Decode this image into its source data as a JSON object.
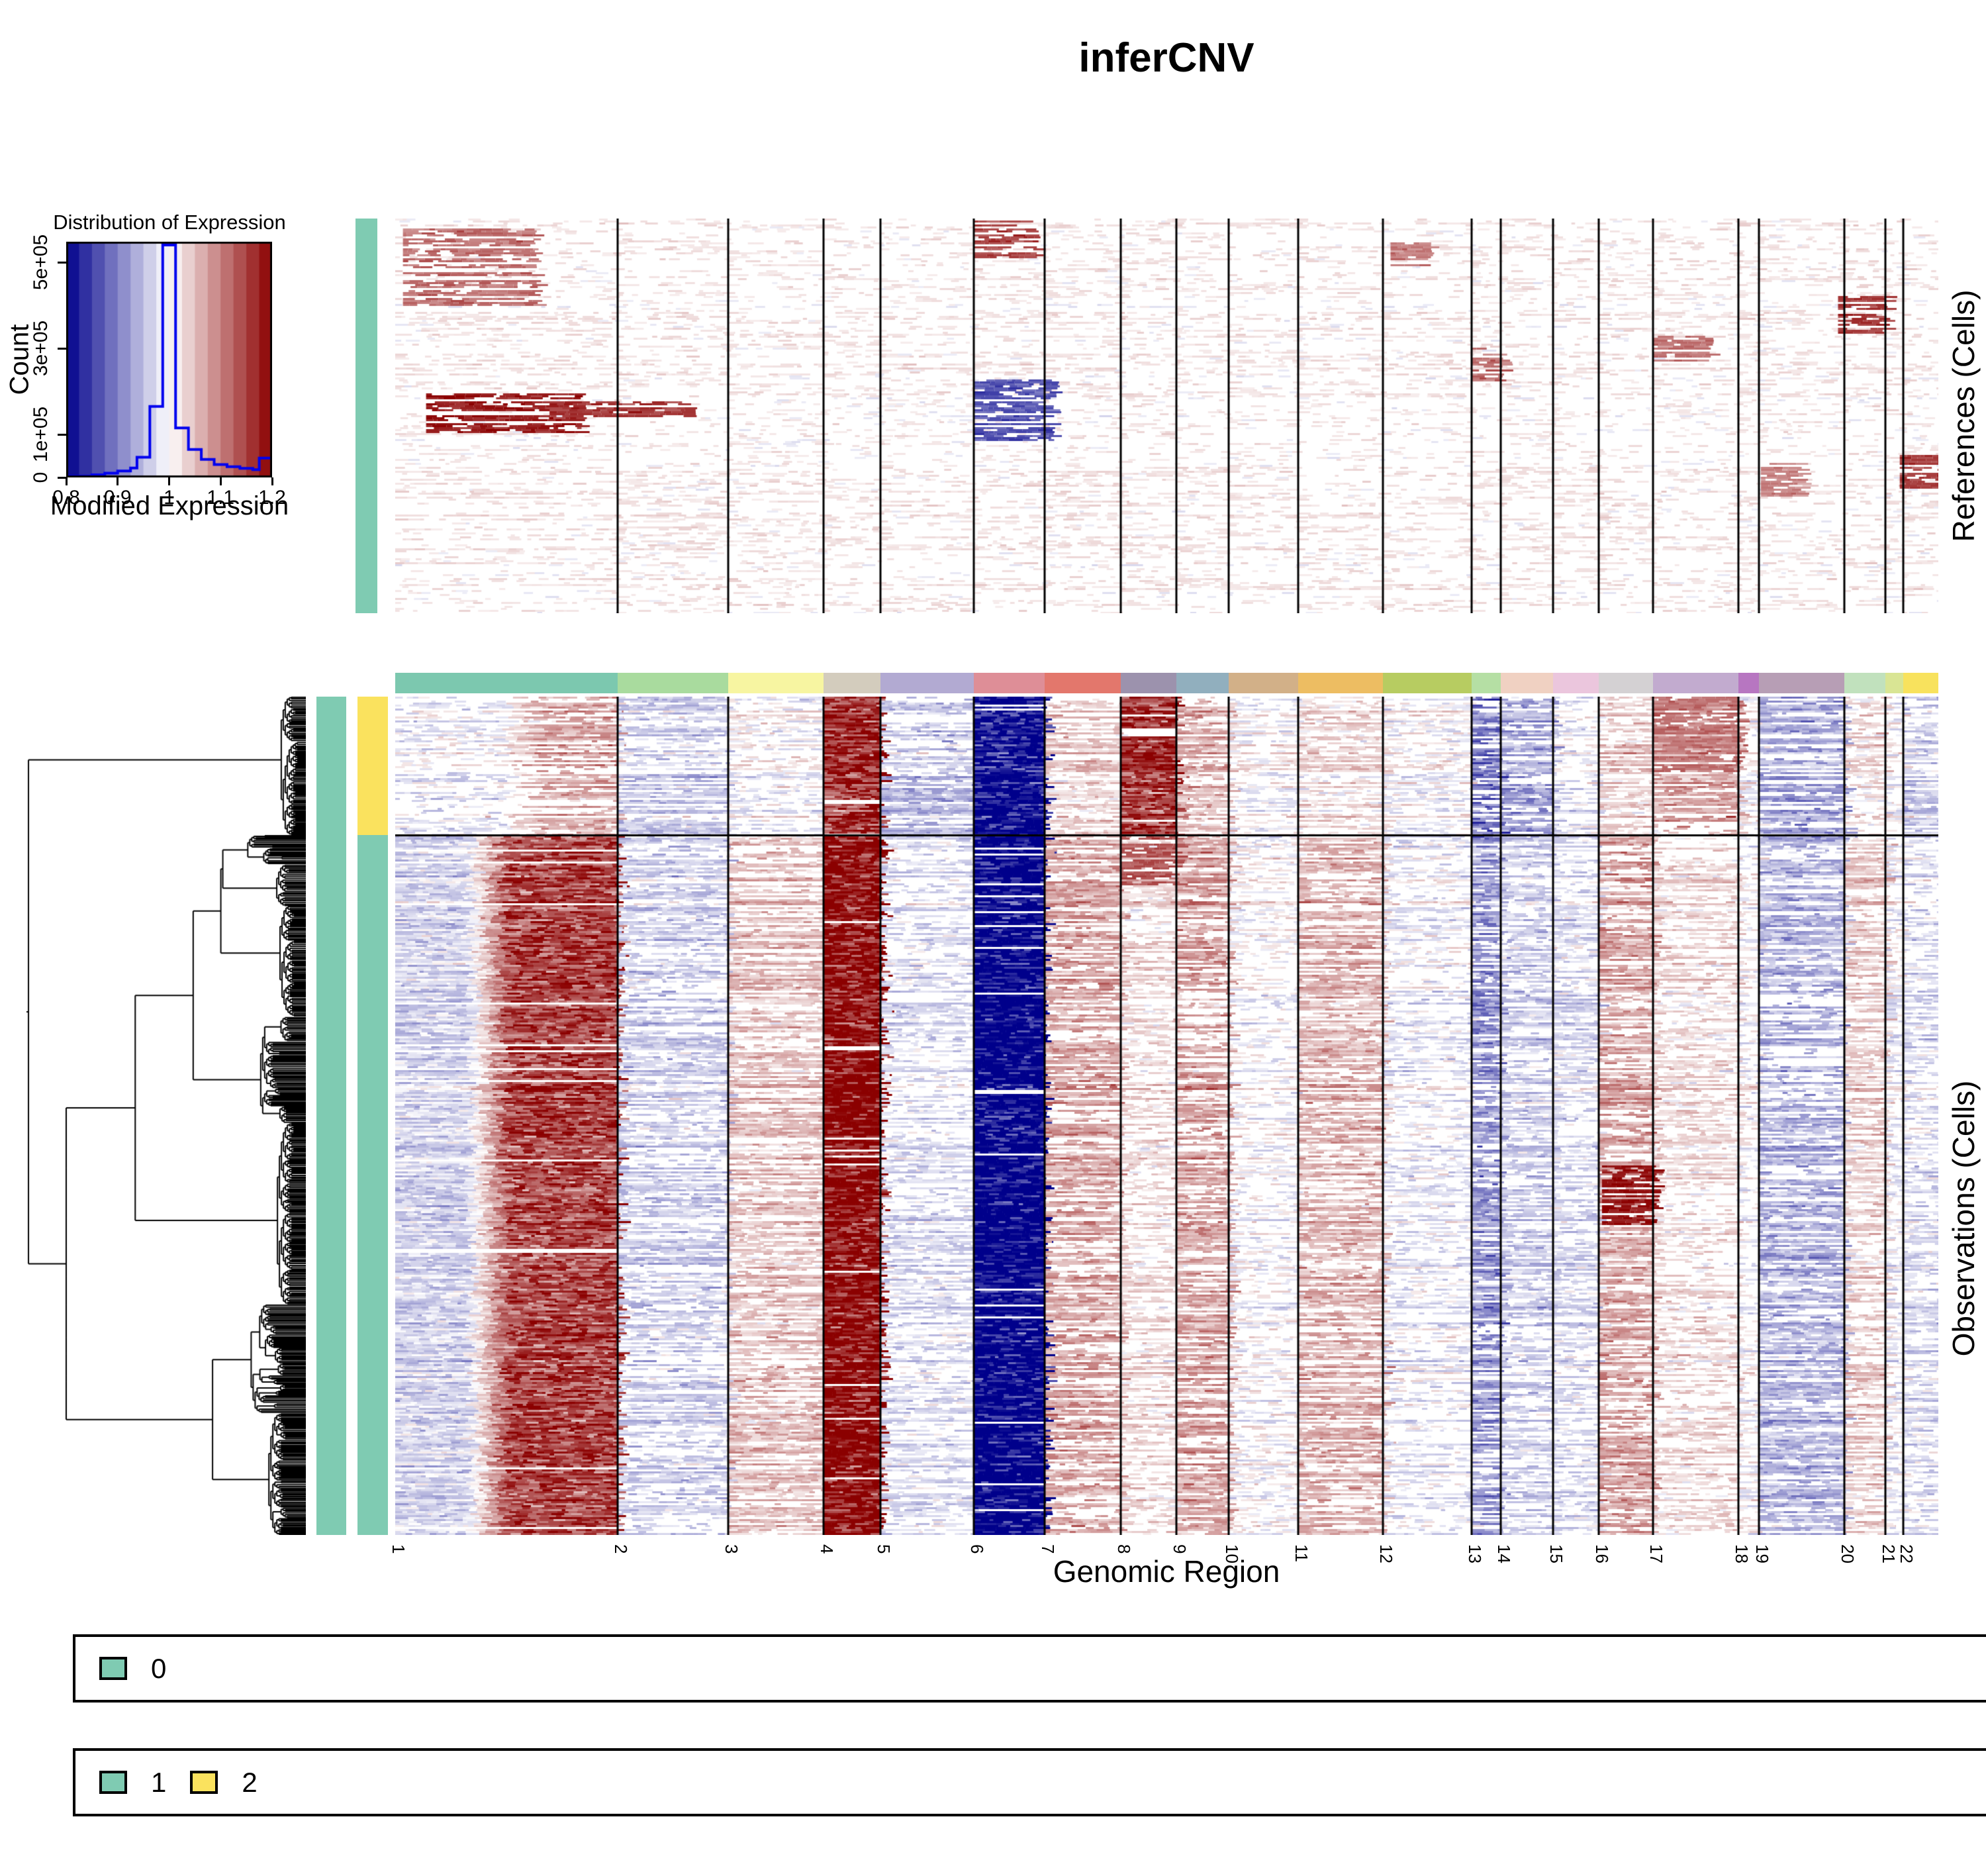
{
  "title": "inferCNV",
  "panels": {
    "references_label": "References (Cells)",
    "observations_label": "Observations (Cells)",
    "xaxis_label": "Genomic Region"
  },
  "annotation_colors": {
    "teal": "#7FCBB2",
    "yellow": "#FAE25E"
  },
  "legends": [
    {
      "items": [
        {
          "label": "0",
          "color": "#7FCBB2"
        }
      ]
    },
    {
      "items": [
        {
          "label": "1",
          "color": "#7FCBB2"
        },
        {
          "label": "2",
          "color": "#FAE25E"
        }
      ]
    }
  ],
  "chart_data": {
    "type": "heatmap",
    "title": "inferCNV",
    "xlabel": "Genomic Region",
    "panels": [
      "References (Cells)",
      "Observations (Cells)"
    ],
    "color_scale": {
      "low": "#00008B",
      "mid": "#FFFFFF",
      "high": "#8B0000",
      "mid_value": 1.0,
      "range": [
        0.8,
        1.2
      ]
    },
    "chromosomes": [
      {
        "name": "1",
        "rel_width": 336,
        "color": "#7CC8AF"
      },
      {
        "name": "2",
        "rel_width": 167,
        "color": "#A9DB9E"
      },
      {
        "name": "3",
        "rel_width": 144,
        "color": "#F7F5A1"
      },
      {
        "name": "4",
        "rel_width": 86,
        "color": "#D3CCBD"
      },
      {
        "name": "5",
        "rel_width": 141,
        "color": "#B2AAD2"
      },
      {
        "name": "6",
        "rel_width": 107,
        "color": "#DE8E97"
      },
      {
        "name": "7",
        "rel_width": 115,
        "color": "#E3776C"
      },
      {
        "name": "8",
        "rel_width": 84,
        "color": "#9C92AD"
      },
      {
        "name": "9",
        "rel_width": 79,
        "color": "#91AFBE"
      },
      {
        "name": "10",
        "rel_width": 105,
        "color": "#D2B088"
      },
      {
        "name": "11",
        "rel_width": 128,
        "color": "#EDBD62"
      },
      {
        "name": "12",
        "rel_width": 134,
        "color": "#B7CC61"
      },
      {
        "name": "13",
        "rel_width": 44,
        "color": "#B5DFA4"
      },
      {
        "name": "14",
        "rel_width": 79,
        "color": "#F0D1C2"
      },
      {
        "name": "15",
        "rel_width": 69,
        "color": "#EBC6DD"
      },
      {
        "name": "16",
        "rel_width": 82,
        "color": "#D4D1D3"
      },
      {
        "name": "17",
        "rel_width": 129,
        "color": "#C2ABCF"
      },
      {
        "name": "18",
        "rel_width": 31,
        "color": "#B776C1"
      },
      {
        "name": "19",
        "rel_width": 129,
        "color": "#B79EB5"
      },
      {
        "name": "20",
        "rel_width": 62,
        "color": "#C1E1BD"
      },
      {
        "name": "21",
        "rel_width": 27,
        "color": "#D9E594"
      },
      {
        "name": "22",
        "rel_width": 53,
        "color": "#F8E25D"
      }
    ],
    "references": {
      "group_label": "0",
      "group_color": "#7FCBB2",
      "mean_expression_by_chr": [
        1,
        1,
        1,
        1,
        1,
        1,
        1,
        1,
        1,
        1,
        1,
        1,
        1,
        1,
        1,
        1,
        1,
        1,
        1,
        1,
        1,
        1
      ],
      "hotspots": [
        {
          "x0": 0.005,
          "x1": 0.09,
          "y0": 0.03,
          "y1": 0.22,
          "v": 1.1
        },
        {
          "x0": 0.02,
          "x1": 0.12,
          "y0": 0.44,
          "y1": 0.54,
          "v": 1.16
        },
        {
          "x0": 0.1,
          "x1": 0.19,
          "y0": 0.455,
          "y1": 0.5,
          "v": 1.14
        },
        {
          "x0": 0.375,
          "x1": 0.415,
          "y0": 0.0,
          "y1": 0.1,
          "v": 1.13
        },
        {
          "x0": 0.375,
          "x1": 0.425,
          "y0": 0.4,
          "y1": 0.56,
          "v": 0.88
        },
        {
          "x0": 0.645,
          "x1": 0.67,
          "y0": 0.06,
          "y1": 0.12,
          "v": 1.09
        },
        {
          "x0": 0.698,
          "x1": 0.717,
          "y0": 0.33,
          "y1": 0.42,
          "v": 1.1
        },
        {
          "x0": 0.815,
          "x1": 0.85,
          "y0": 0.3,
          "y1": 0.36,
          "v": 1.1
        },
        {
          "x0": 0.935,
          "x1": 0.965,
          "y0": 0.2,
          "y1": 0.29,
          "v": 1.14
        },
        {
          "x0": 0.975,
          "x1": 1.0,
          "y0": 0.6,
          "y1": 0.68,
          "v": 1.13
        },
        {
          "x0": 0.885,
          "x1": 0.91,
          "y0": 0.62,
          "y1": 0.7,
          "v": 1.08
        }
      ]
    },
    "observations": {
      "clusters": [
        {
          "label": "2",
          "color": "#FAE25E",
          "row_fraction": 0.165,
          "mean_expression_by_chr": [
            1.06,
            0.97,
            1.0,
            1.15,
            0.96,
            0.82,
            1.03,
            1.14,
            1.05,
            1.0,
            1.02,
            1.0,
            0.91,
            0.94,
            0.99,
            1.03,
            1.07,
            1.0,
            0.94,
            1.02,
            1.0,
            0.97
          ],
          "chr1_gradient": {
            "split": 0.45,
            "left_value": 0.99
          }
        },
        {
          "label": "1",
          "color": "#7FCBB2",
          "row_fraction": 0.835,
          "mean_expression_by_chr": [
            1.13,
            0.97,
            1.04,
            1.18,
            0.98,
            0.8,
            1.06,
            1.02,
            1.06,
            1.0,
            1.05,
            0.99,
            0.93,
            0.97,
            0.98,
            1.06,
            1.02,
            1.0,
            0.95,
            1.03,
            0.99,
            0.98
          ],
          "chr1_gradient": {
            "split": 0.3,
            "left_value": 0.97
          }
        }
      ],
      "hotspots": [
        {
          "x0": 0.782,
          "x1": 0.815,
          "y0": 0.56,
          "y1": 0.63,
          "v": 1.17
        },
        {
          "x0": 0.47,
          "x1": 0.506,
          "y0": 0.165,
          "y1": 0.225,
          "v": 1.12
        },
        {
          "x0": 0.815,
          "x1": 0.87,
          "y0": 0.0,
          "y1": 0.09,
          "v": 1.1
        }
      ]
    },
    "histogram": {
      "type": "bar",
      "title": "Distribution of Expression",
      "xlabel": "Modified Expression",
      "ylabel": "Count",
      "xlim": [
        0.8,
        1.2
      ],
      "ylim": [
        0,
        560000
      ],
      "line_color": "#0000EE",
      "x_ticks": [
        {
          "label": "0.8",
          "value": 0.8
        },
        {
          "label": "0.9",
          "value": 0.9
        },
        {
          "label": "1",
          "value": 1.0
        },
        {
          "label": "1.1",
          "value": 1.1
        },
        {
          "label": "1.2",
          "value": 1.2
        }
      ],
      "y_ticks": [
        {
          "label": "0",
          "value": 0
        },
        {
          "label": "1e+05",
          "value": 100000
        },
        {
          "label": "3e+05",
          "value": 300000
        },
        {
          "label": "5e+05",
          "value": 500000
        }
      ],
      "bin_edges": [
        0.8,
        0.85,
        0.875,
        0.9,
        0.925,
        0.9375,
        0.9625,
        0.9875,
        1.0125,
        1.0375,
        1.0625,
        1.0875,
        1.1125,
        1.1375,
        1.1625,
        1.175,
        1.2
      ],
      "counts": [
        3000,
        6000,
        10000,
        15000,
        22000,
        47000,
        165000,
        540000,
        115000,
        65000,
        42000,
        30000,
        25000,
        21000,
        18000,
        45000
      ]
    }
  }
}
